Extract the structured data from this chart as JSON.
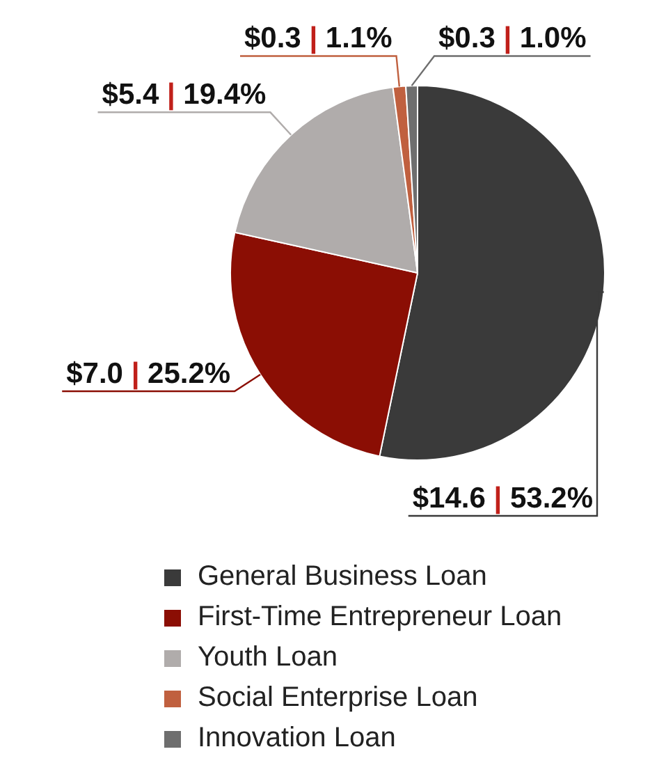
{
  "chart_data": {
    "type": "pie",
    "categories": [
      "General Business Loan",
      "First-Time Entrepreneur Loan",
      "Youth Loan",
      "Social Enterprise Loan",
      "Innovation Loan"
    ],
    "values": [
      53.2,
      25.2,
      19.4,
      1.1,
      1.0
    ],
    "colors": [
      "#3a3a3a",
      "#8b0e04",
      "#b0acab",
      "#c0603f",
      "#6e6e6e"
    ],
    "value_labels": [
      "$14.6 | 53.2%",
      "$7.0 | 25.2%",
      "$5.4 | 19.4%",
      "$0.3 | 1.1%",
      "$0.3 | 1.0%"
    ],
    "legend": "bottom"
  }
}
